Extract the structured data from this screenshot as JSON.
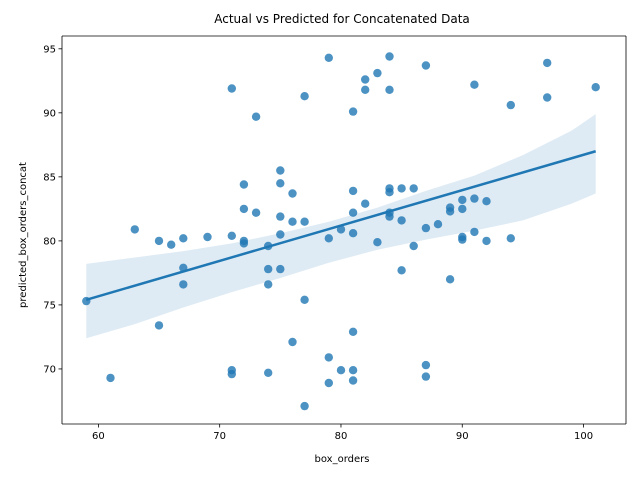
{
  "chart_data": {
    "type": "scatter",
    "title": "Actual vs Predicted for Concatenated Data",
    "xlabel": "box_orders",
    "ylabel": "predicted_box_orders_concat",
    "xlim": [
      57,
      103.5
    ],
    "ylim": [
      65.7,
      96.0
    ],
    "xticks": [
      60,
      70,
      80,
      90,
      100
    ],
    "yticks": [
      70,
      75,
      80,
      85,
      90,
      95
    ],
    "grid": false,
    "legend": "none",
    "colors": {
      "points": "#1f77b4",
      "regression_line": "#1f77b4",
      "confidence_band": "#1f77b4"
    },
    "points": [
      {
        "x": 59,
        "y": 75.3
      },
      {
        "x": 61,
        "y": 69.3
      },
      {
        "x": 63,
        "y": 80.9
      },
      {
        "x": 65,
        "y": 80.0
      },
      {
        "x": 65,
        "y": 73.4
      },
      {
        "x": 66,
        "y": 79.7
      },
      {
        "x": 67,
        "y": 80.2
      },
      {
        "x": 67,
        "y": 77.9
      },
      {
        "x": 67,
        "y": 76.6
      },
      {
        "x": 69,
        "y": 80.3
      },
      {
        "x": 71,
        "y": 91.9
      },
      {
        "x": 71,
        "y": 80.4
      },
      {
        "x": 71,
        "y": 69.9
      },
      {
        "x": 71,
        "y": 69.6
      },
      {
        "x": 72,
        "y": 84.4
      },
      {
        "x": 72,
        "y": 82.5
      },
      {
        "x": 72,
        "y": 80.0
      },
      {
        "x": 72,
        "y": 79.8
      },
      {
        "x": 73,
        "y": 89.7
      },
      {
        "x": 73,
        "y": 82.2
      },
      {
        "x": 74,
        "y": 79.6
      },
      {
        "x": 74,
        "y": 77.8
      },
      {
        "x": 74,
        "y": 76.6
      },
      {
        "x": 74,
        "y": 69.7
      },
      {
        "x": 75,
        "y": 85.5
      },
      {
        "x": 75,
        "y": 84.5
      },
      {
        "x": 75,
        "y": 81.9
      },
      {
        "x": 75,
        "y": 80.5
      },
      {
        "x": 75,
        "y": 77.8
      },
      {
        "x": 76,
        "y": 83.7
      },
      {
        "x": 76,
        "y": 81.5
      },
      {
        "x": 76,
        "y": 72.1
      },
      {
        "x": 77,
        "y": 91.3
      },
      {
        "x": 77,
        "y": 81.5
      },
      {
        "x": 77,
        "y": 75.4
      },
      {
        "x": 77,
        "y": 67.1
      },
      {
        "x": 79,
        "y": 94.3
      },
      {
        "x": 79,
        "y": 80.2
      },
      {
        "x": 79,
        "y": 70.9
      },
      {
        "x": 79,
        "y": 68.9
      },
      {
        "x": 80,
        "y": 80.9
      },
      {
        "x": 80,
        "y": 69.9
      },
      {
        "x": 81,
        "y": 90.1
      },
      {
        "x": 81,
        "y": 83.9
      },
      {
        "x": 81,
        "y": 82.2
      },
      {
        "x": 81,
        "y": 80.6
      },
      {
        "x": 81,
        "y": 72.9
      },
      {
        "x": 81,
        "y": 69.9
      },
      {
        "x": 81,
        "y": 69.1
      },
      {
        "x": 82,
        "y": 92.6
      },
      {
        "x": 82,
        "y": 91.8
      },
      {
        "x": 82,
        "y": 82.9
      },
      {
        "x": 83,
        "y": 93.1
      },
      {
        "x": 83,
        "y": 79.9
      },
      {
        "x": 84,
        "y": 94.4
      },
      {
        "x": 84,
        "y": 91.8
      },
      {
        "x": 84,
        "y": 84.1
      },
      {
        "x": 84,
        "y": 83.8
      },
      {
        "x": 84,
        "y": 82.2
      },
      {
        "x": 84,
        "y": 81.9
      },
      {
        "x": 85,
        "y": 84.1
      },
      {
        "x": 85,
        "y": 81.6
      },
      {
        "x": 85,
        "y": 77.7
      },
      {
        "x": 86,
        "y": 84.1
      },
      {
        "x": 86,
        "y": 79.6
      },
      {
        "x": 87,
        "y": 93.7
      },
      {
        "x": 87,
        "y": 81.0
      },
      {
        "x": 87,
        "y": 70.3
      },
      {
        "x": 87,
        "y": 69.4
      },
      {
        "x": 88,
        "y": 81.3
      },
      {
        "x": 89,
        "y": 82.6
      },
      {
        "x": 89,
        "y": 82.3
      },
      {
        "x": 89,
        "y": 77.0
      },
      {
        "x": 90,
        "y": 83.2
      },
      {
        "x": 90,
        "y": 82.5
      },
      {
        "x": 90,
        "y": 80.3
      },
      {
        "x": 90,
        "y": 80.1
      },
      {
        "x": 91,
        "y": 92.2
      },
      {
        "x": 91,
        "y": 83.3
      },
      {
        "x": 91,
        "y": 80.7
      },
      {
        "x": 92,
        "y": 83.1
      },
      {
        "x": 92,
        "y": 80.0
      },
      {
        "x": 94,
        "y": 90.6
      },
      {
        "x": 94,
        "y": 80.2
      },
      {
        "x": 97,
        "y": 93.9
      },
      {
        "x": 97,
        "y": 91.2
      },
      {
        "x": 101,
        "y": 92.0
      }
    ],
    "regression": {
      "x": [
        59,
        101
      ],
      "y": [
        75.4,
        87.0
      ]
    },
    "confidence_band": {
      "x": [
        59,
        63,
        67,
        71,
        75,
        79,
        83,
        87,
        91,
        95,
        99,
        101
      ],
      "upper": [
        78.2,
        78.7,
        79.2,
        79.8,
        80.6,
        81.5,
        82.6,
        83.9,
        85.1,
        86.7,
        88.6,
        89.9
      ],
      "lower": [
        72.4,
        73.5,
        74.8,
        76.0,
        77.1,
        78.3,
        79.3,
        80.1,
        80.8,
        81.6,
        82.9,
        83.7
      ]
    }
  }
}
